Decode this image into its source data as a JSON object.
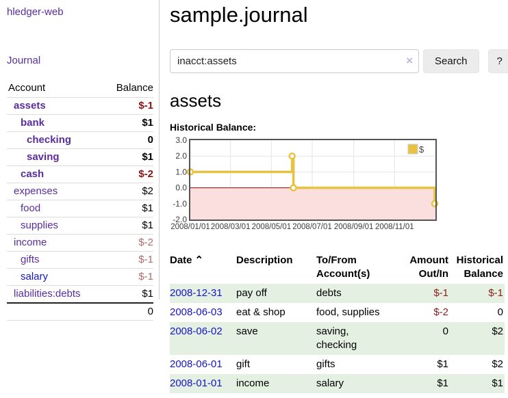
{
  "app": {
    "title": "hledger-web",
    "journal_link": "Journal"
  },
  "sidebar": {
    "headers": {
      "account": "Account",
      "balance": "Balance"
    },
    "accounts": [
      {
        "name": "assets",
        "balance": "$-1",
        "indent": 1,
        "bold": true,
        "neg": "strong"
      },
      {
        "name": "bank",
        "balance": "$1",
        "indent": 2,
        "bold": true,
        "neg": "none"
      },
      {
        "name": "checking",
        "balance": "0",
        "indent": 3,
        "bold": true,
        "neg": "none"
      },
      {
        "name": "saving",
        "balance": "$1",
        "indent": 3,
        "bold": true,
        "neg": "none"
      },
      {
        "name": "cash",
        "balance": "$-2",
        "indent": 2,
        "bold": true,
        "neg": "strong"
      },
      {
        "name": "expenses",
        "balance": "$2",
        "indent": 1,
        "bold": false,
        "neg": "none"
      },
      {
        "name": "food",
        "balance": "$1",
        "indent": 2,
        "bold": false,
        "neg": "none"
      },
      {
        "name": "supplies",
        "balance": "$1",
        "indent": 2,
        "bold": false,
        "neg": "none"
      },
      {
        "name": "income",
        "balance": "$-2",
        "indent": 1,
        "bold": false,
        "neg": "soft"
      },
      {
        "name": "gifts",
        "balance": "$-1",
        "indent": 2,
        "bold": false,
        "neg": "soft"
      },
      {
        "name": "salary",
        "balance": "$-1",
        "indent": 2,
        "bold": false,
        "neg": "soft",
        "blue": true
      },
      {
        "name": "liabilities:debts",
        "balance": "$1",
        "indent": 1,
        "bold": false,
        "neg": "none"
      }
    ],
    "total": "0"
  },
  "header": {
    "title": "sample.journal"
  },
  "search": {
    "value": "inacct:assets",
    "clear_icon": "×",
    "button_label": "Search",
    "help_label": "?"
  },
  "register": {
    "heading": "assets",
    "chart_label": "Historical Balance:",
    "table": {
      "headers": [
        "Date",
        "Description",
        "To/From Account(s)",
        "Amount Out/In",
        "Historical Balance"
      ],
      "sort_icon": "⌃",
      "rows": [
        {
          "date": "2008-12-31",
          "description": "pay off",
          "accounts": "debts",
          "amount": "$-1",
          "balance": "$-1"
        },
        {
          "date": "2008-06-03",
          "description": "eat & shop",
          "accounts": "food, supplies",
          "amount": "$-2",
          "balance": "0"
        },
        {
          "date": "2008-06-02",
          "description": "save",
          "accounts": "saving, checking",
          "amount": "0",
          "balance": "$2"
        },
        {
          "date": "2008-06-01",
          "description": "gift",
          "accounts": "gifts",
          "amount": "$1",
          "balance": "$2"
        },
        {
          "date": "2008-01-01",
          "description": "income",
          "accounts": "salary",
          "amount": "$1",
          "balance": "$1"
        }
      ]
    }
  },
  "chart_data": {
    "type": "line",
    "style": "step-after",
    "title": "Historical Balance",
    "series": [
      {
        "name": "$",
        "color": "#e9c23f",
        "points": [
          [
            "2008-01-01",
            1
          ],
          [
            "2008-06-01",
            2
          ],
          [
            "2008-06-03",
            0
          ],
          [
            "2008-12-31",
            -1
          ]
        ]
      }
    ],
    "ylim": [
      -2,
      3
    ],
    "yticks": [
      3.0,
      2.0,
      1.0,
      0.0,
      -1.0,
      -2.0
    ],
    "xtick_labels": [
      "2008/01/01",
      "2008/03/01",
      "2008/05/01",
      "2008/07/01",
      "2008/09/01",
      "2008/11/01"
    ],
    "xrange_days": 366,
    "grid": true,
    "legend": {
      "label": "$",
      "position": "top-right"
    },
    "negative_region_color": "#fbdfdf",
    "zero_line_color": "#8b0000",
    "grid_color": "#e4e4e4",
    "border_color": "#545454",
    "marker": {
      "fill": "#ffffff",
      "r": 4
    }
  }
}
